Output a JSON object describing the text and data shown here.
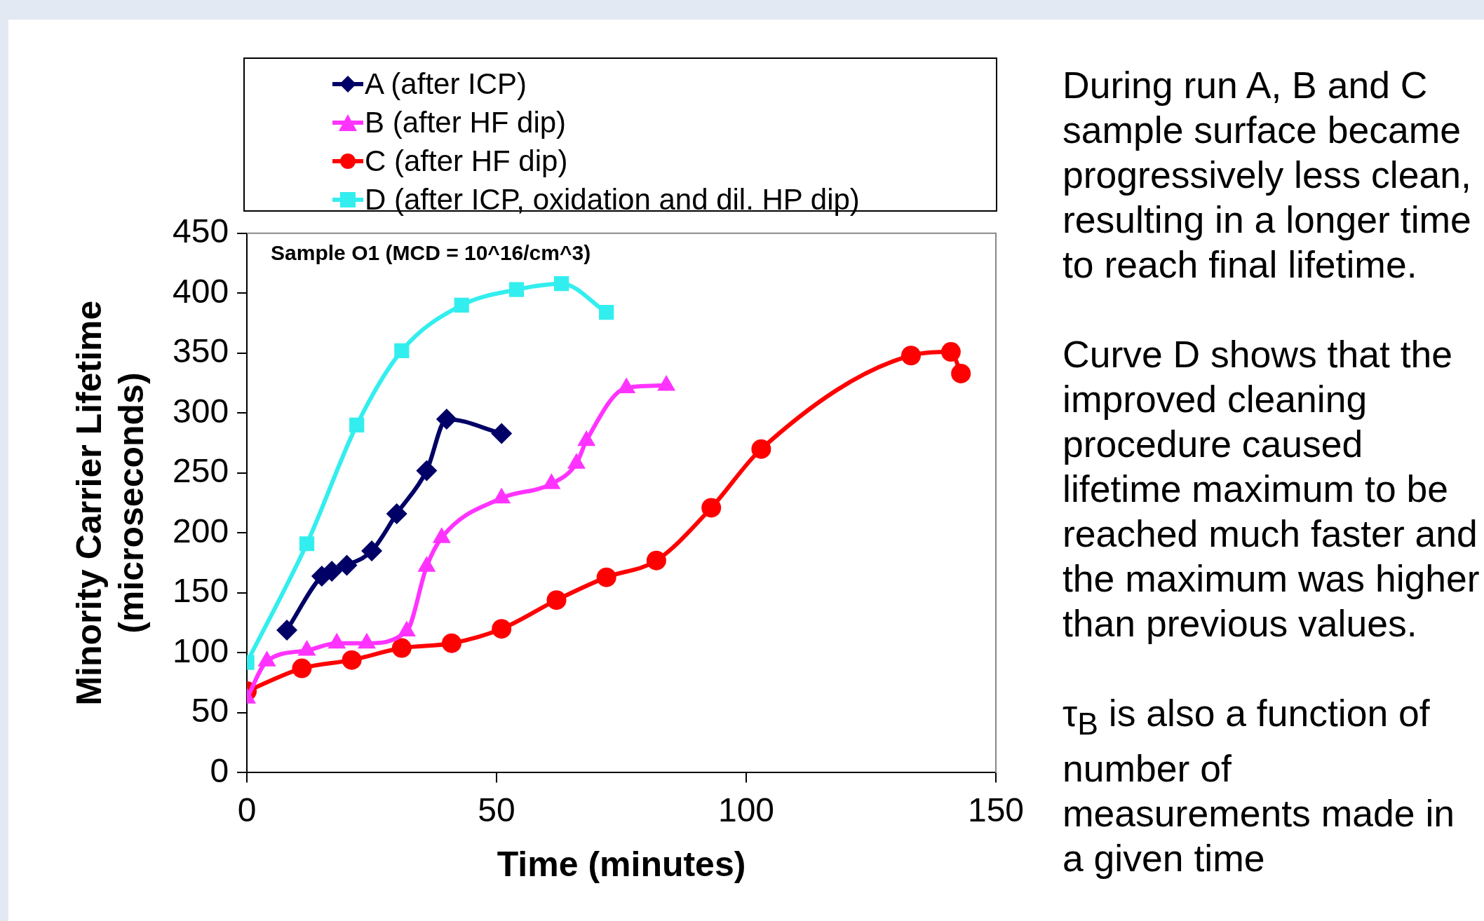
{
  "chart_data": {
    "type": "line",
    "title": "Sample O1 (MCD = 10^16/cm^3)",
    "xlabel": "Time (minutes)",
    "ylabel": "Minority Carrier Lifetime\n(microseconds)",
    "xlim": [
      0,
      150
    ],
    "xticks": [
      0,
      50,
      100,
      150
    ],
    "ylim": [
      0,
      450
    ],
    "yticks": [
      0,
      50,
      100,
      150,
      200,
      250,
      300,
      350,
      400,
      450
    ],
    "grid": false,
    "legend": "top",
    "series": [
      {
        "name": "A (after ICP)",
        "color": "#000066",
        "marker": "diamond",
        "x": [
          8,
          15,
          17,
          20,
          25,
          30,
          36,
          40,
          51
        ],
        "values": [
          119,
          164,
          168,
          173,
          185,
          216,
          252,
          295,
          283
        ]
      },
      {
        "name": "B (after HF dip)",
        "color": "#ff33ff",
        "marker": "triangle",
        "x": [
          0,
          4,
          12,
          18,
          24,
          32,
          36,
          39,
          51,
          61,
          66,
          68,
          76,
          84
        ],
        "values": [
          62,
          93,
          102,
          108,
          108,
          118,
          172,
          196,
          229,
          241,
          258,
          277,
          321,
          323
        ]
      },
      {
        "name": "C (after HF dip)",
        "color": "#ff0000",
        "marker": "circle",
        "x": [
          0,
          11,
          21,
          31,
          41,
          51,
          62,
          72,
          82,
          93,
          103,
          133,
          141,
          143
        ],
        "values": [
          68,
          87,
          94,
          104,
          108,
          120,
          144,
          163,
          177,
          221,
          270,
          348,
          351,
          333
        ]
      },
      {
        "name": "D (after ICP, oxidation and dil. HP dip)",
        "color": "#33eeee",
        "marker": "square",
        "x": [
          0,
          12,
          22,
          31,
          43,
          54,
          63,
          72
        ],
        "values": [
          92,
          191,
          290,
          352,
          390,
          403,
          408,
          384
        ]
      }
    ],
    "annotations": [
      "During run A, B and C sample surface became progressively less clean, resulting in a longer time to reach final lifetime.",
      "Curve D shows that the improved cleaning procedure caused lifetime maximum to be reached much faster and the maximum was higher than previous values.",
      "τ$_{B}$ is also a function of number of measurements made in a given time"
    ]
  }
}
